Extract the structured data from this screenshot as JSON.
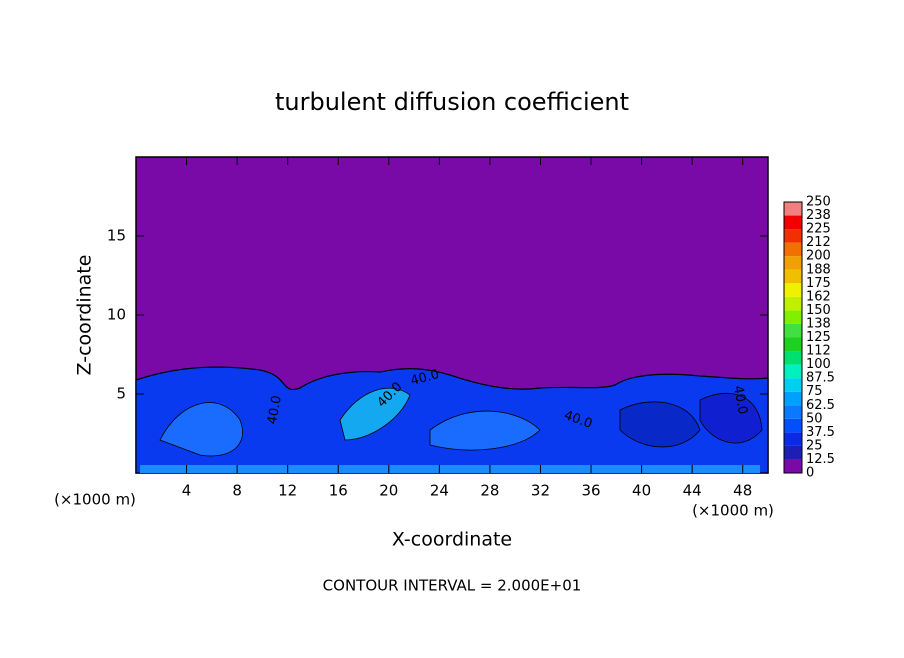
{
  "chart_data": {
    "type": "contour",
    "title": "turbulent diffusion coefficient",
    "x_label": "X-coordinate",
    "y_label": "Z-coordinate",
    "x_unit": "(×1000 m)",
    "x_unit_right": "(×1000 m)",
    "footer": "CONTOUR INTERVAL = 2.000E+01",
    "xlim": [
      0,
      50
    ],
    "ylim": [
      0,
      20
    ],
    "xticks": [
      4,
      8,
      12,
      16,
      20,
      24,
      28,
      32,
      36,
      40,
      44,
      48
    ],
    "yticks": [
      5,
      10,
      15
    ],
    "levels": [
      0,
      12.5,
      25,
      37.5,
      50,
      62.5,
      75,
      87.5,
      100,
      112,
      125,
      138,
      150,
      162,
      175,
      188,
      200,
      212,
      225,
      238,
      250
    ],
    "colors": [
      "#7a0aa8",
      "#1e1eb4",
      "#0a2ae6",
      "#0050ff",
      "#0a78ff",
      "#00a0ff",
      "#00d0f0",
      "#00f0c0",
      "#00e070",
      "#20d020",
      "#40e040",
      "#80f000",
      "#c0f000",
      "#f0f000",
      "#f0c000",
      "#f0a000",
      "#f07000",
      "#f03000",
      "#f00000",
      "#f08080"
    ],
    "contour_labels": [
      "40.0",
      "40.0",
      "40.0",
      "40.0",
      "40.0"
    ]
  }
}
